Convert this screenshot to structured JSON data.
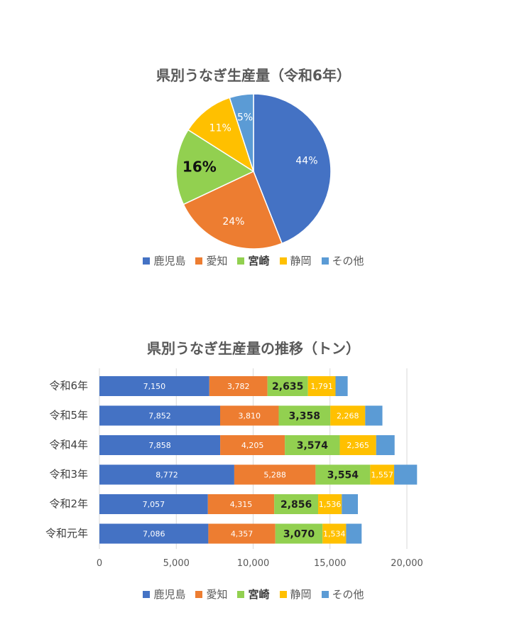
{
  "chart_data": [
    {
      "type": "pie",
      "title": "県別うなぎ生産量（令和6年）",
      "labels": [
        "鹿児島",
        "愛知",
        "宮崎",
        "静岡",
        "その他"
      ],
      "values": [
        44,
        24,
        16,
        11,
        5
      ],
      "value_labels": [
        "44%",
        "24%",
        "16%",
        "11%",
        "5%"
      ],
      "highlight": "宮崎",
      "colors": [
        "#4472C4",
        "#ED7D31",
        "#92D050",
        "#FFC000",
        "#5B9BD5"
      ]
    },
    {
      "type": "bar",
      "orientation": "horizontal",
      "stacked": true,
      "title": "県別うなぎ生産量の推移（トン）",
      "categories": [
        "令和6年",
        "令和5年",
        "令和4年",
        "令和3年",
        "令和2年",
        "令和元年"
      ],
      "series": [
        {
          "name": "鹿児島",
          "color": "#4472C4",
          "values": [
            7150,
            7852,
            7858,
            8772,
            7057,
            7086
          ],
          "labels": [
            "7,150",
            "7,852",
            "7,858",
            "8,772",
            "7,057",
            "7,086"
          ]
        },
        {
          "name": "愛知",
          "color": "#ED7D31",
          "values": [
            3782,
            3810,
            4205,
            5288,
            4315,
            4357
          ],
          "labels": [
            "3,782",
            "3,810",
            "4,205",
            "5,288",
            "4,315",
            "4,357"
          ]
        },
        {
          "name": "宮崎",
          "color": "#92D050",
          "values": [
            2635,
            3358,
            3574,
            3554,
            2856,
            3070
          ],
          "labels": [
            "2,635",
            "3,358",
            "3,574",
            "3,554",
            "2,856",
            "3,070"
          ]
        },
        {
          "name": "静岡",
          "color": "#FFC000",
          "values": [
            1791,
            2268,
            2365,
            1557,
            1536,
            1534
          ],
          "labels": [
            "1,791",
            "2,268",
            "2,365",
            "1,557",
            "1,536",
            "1,534"
          ]
        },
        {
          "name": "その他",
          "color": "#5B9BD5",
          "values": [
            790,
            1120,
            1200,
            1490,
            1050,
            1010
          ],
          "labels": []
        }
      ],
      "xlim": [
        0,
        20000
      ],
      "xticks": [
        0,
        5000,
        10000,
        15000,
        20000
      ],
      "xtick_labels": [
        "0",
        "5,000",
        "10,000",
        "15,000",
        "20,000"
      ],
      "grid": true,
      "legend_position": "bottom",
      "highlight": "宮崎"
    }
  ]
}
